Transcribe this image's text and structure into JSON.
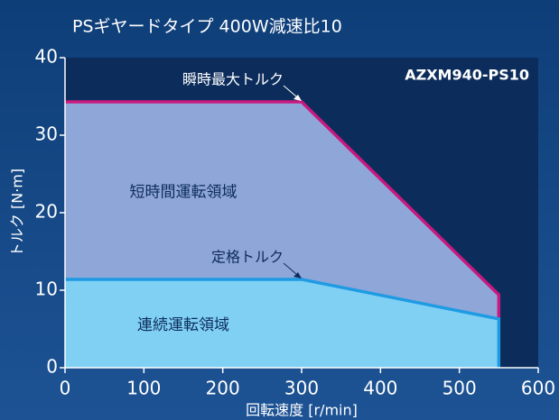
{
  "chart_data": {
    "type": "line",
    "title": "PSギヤードタイプ 400W減速比10",
    "model": "AZXM940-PS10",
    "xlabel": "回転速度 [r/min]",
    "ylabel": "トルク [N·m]",
    "x": [
      0,
      300,
      550,
      550
    ],
    "series": [
      {
        "name": "瞬時最大トルク",
        "color": "#c8197f",
        "fill": "#8fa6d9",
        "region": "短時間運転領域",
        "values": [
          34.3,
          34.3,
          9.4,
          6.3
        ]
      },
      {
        "name": "定格トルク",
        "color": "#1e9be3",
        "fill": "#80d0f4",
        "region": "連続運転領域",
        "values": [
          11.4,
          11.4,
          6.3,
          0
        ]
      }
    ],
    "xlim": [
      0,
      600
    ],
    "xticks": [
      0,
      100,
      200,
      300,
      400,
      500,
      600
    ],
    "ylim": [
      0,
      40
    ],
    "yticks": [
      0,
      10,
      20,
      30,
      40
    ]
  }
}
